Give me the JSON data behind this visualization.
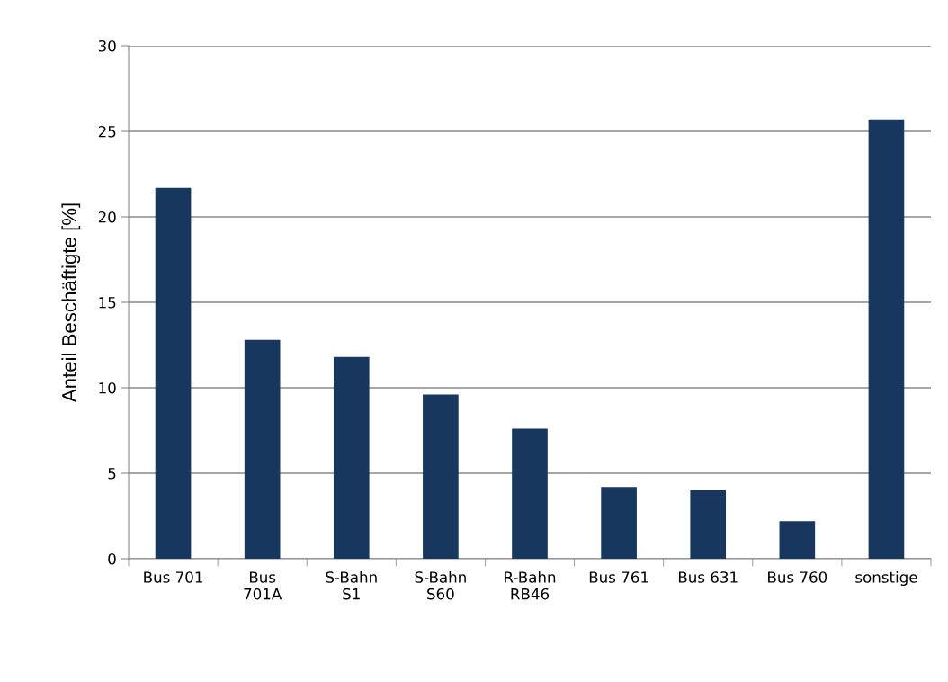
{
  "chart_data": {
    "type": "bar",
    "ylabel": "Anteil Beschäftigte [%]",
    "categories": [
      "Bus 701",
      "Bus 701A",
      "S-Bahn S1",
      "S-Bahn S60",
      "R-Bahn RB46",
      "Bus 761",
      "Bus 631",
      "Bus 760",
      "sonstige"
    ],
    "values": [
      21.7,
      12.8,
      11.8,
      9.6,
      7.6,
      4.2,
      4.0,
      2.2,
      25.7
    ],
    "color": "#17375e",
    "ylim": [
      0,
      30
    ],
    "yticks": [
      0,
      5,
      10,
      15,
      20,
      25,
      30
    ],
    "grid": "y"
  }
}
